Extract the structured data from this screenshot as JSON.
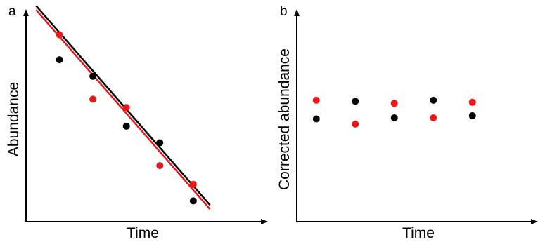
{
  "colors": {
    "series_a": "#000000",
    "series_b": "#e8191b",
    "axis": "#000000"
  },
  "chart_data": [
    {
      "panel": "a",
      "type": "scatter",
      "xlabel": "Time",
      "ylabel": "Abundance",
      "xlim": [
        0,
        7
      ],
      "ylim": [
        0,
        10
      ],
      "grid": false,
      "legend": "none",
      "ticks": false,
      "series": [
        {
          "color": "#000000",
          "x": [
            1,
            2,
            3,
            4,
            5
          ],
          "y": [
            7.8,
            7.0,
            4.6,
            3.8,
            1.0
          ]
        },
        {
          "color": "#e8191b",
          "x": [
            1,
            2,
            3,
            4,
            5
          ],
          "y": [
            9.0,
            5.9,
            5.5,
            2.7,
            1.8
          ]
        }
      ],
      "fit_lines": [
        {
          "color": "#000000",
          "x": [
            0.3,
            5.5
          ],
          "y": [
            10.4,
            0.8
          ]
        },
        {
          "color": "#e8191b",
          "x": [
            0.3,
            5.5
          ],
          "y": [
            10.2,
            0.6
          ]
        }
      ]
    },
    {
      "panel": "b",
      "type": "scatter",
      "xlabel": "Time",
      "ylabel": "Corrected abundance",
      "xlim": [
        0,
        6
      ],
      "ylim": [
        0,
        10
      ],
      "grid": false,
      "legend": "none",
      "ticks": false,
      "series": [
        {
          "color": "#000000",
          "x": [
            0.5,
            1.5,
            2.5,
            3.5,
            4.5
          ],
          "y": [
            4.95,
            5.8,
            5.0,
            5.85,
            5.1
          ]
        },
        {
          "color": "#e8191b",
          "x": [
            0.5,
            1.5,
            2.5,
            3.5,
            4.5
          ],
          "y": [
            5.85,
            4.7,
            5.7,
            5.0,
            5.75
          ]
        }
      ]
    }
  ]
}
